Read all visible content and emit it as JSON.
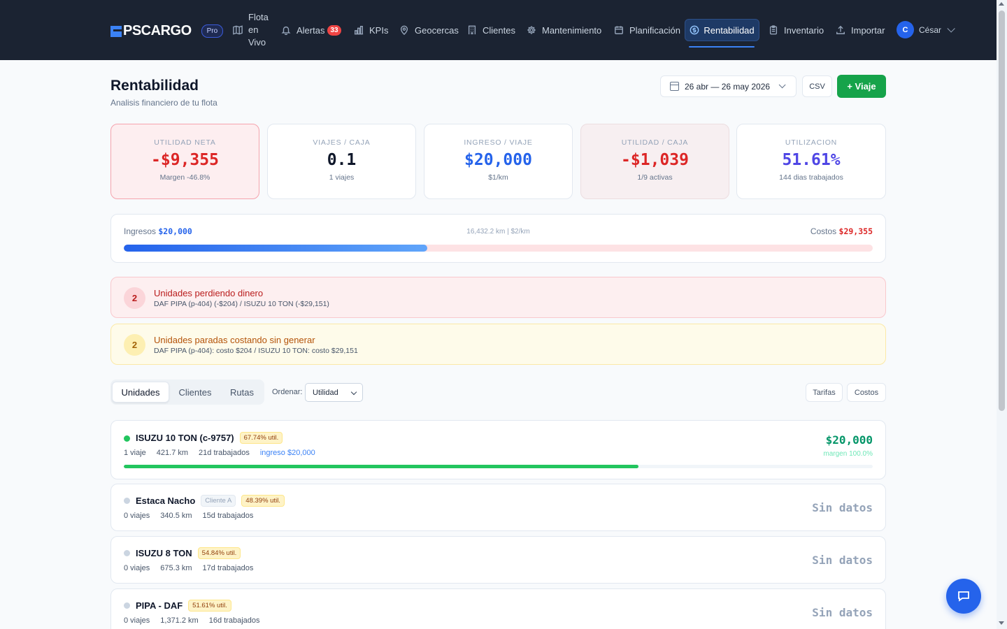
{
  "nav": {
    "brand": "PSCARGO",
    "plan_badge": "Pro",
    "items": [
      {
        "label": "Flota en Vivo",
        "icon": "map-icon"
      },
      {
        "label": "Alertas",
        "icon": "bell-icon",
        "badge": "33"
      },
      {
        "label": "KPIs",
        "icon": "bar-chart-icon"
      },
      {
        "label": "Geocercas",
        "icon": "map-pin-icon"
      },
      {
        "label": "Clientes",
        "icon": "building-icon"
      },
      {
        "label": "Mantenimiento",
        "icon": "gear-icon"
      },
      {
        "label": "Planificación",
        "icon": "calendar-icon"
      },
      {
        "label": "Rentabilidad",
        "icon": "dollar-circle-icon",
        "active": true
      },
      {
        "label": "Inventario",
        "icon": "clipboard-icon"
      },
      {
        "label": "Importar",
        "icon": "upload-icon"
      }
    ],
    "user": {
      "initial": "C",
      "name": "César"
    }
  },
  "header": {
    "title": "Rentabilidad",
    "subtitle": "Analisis financiero de tu flota",
    "date_range": "26 abr — 26 may 2026",
    "csv_label": "CSV",
    "new_trip_label": "+ Viaje"
  },
  "kpis": [
    {
      "label": "UTILIDAD NETA",
      "value": "-$9,355",
      "sub": "Margen -46.8%"
    },
    {
      "label": "VIAJES / CAJA",
      "value": "0.1",
      "sub": "1 viajes"
    },
    {
      "label": "INGRESO / VIAJE",
      "value": "$20,000",
      "sub": "$1/km"
    },
    {
      "label": "UTILIDAD / CAJA",
      "value": "-$1,039",
      "sub": "1/9 activas"
    },
    {
      "label": "UTILIZACION",
      "value": "51.61%",
      "sub": "144 dias trabajados"
    }
  ],
  "revenue_bar": {
    "income_label": "Ingresos",
    "income_value": "$20,000",
    "middle": "16,432.2 km | $2/km",
    "cost_label": "Costos",
    "cost_value": "$29,355",
    "income_share": 0.405
  },
  "alerts": [
    {
      "count": "2",
      "title": "Unidades perdiendo dinero",
      "detail": "DAF PIPA (p-404) (-$204) / ISUZU 10 TON (-$29,151)"
    },
    {
      "count": "2",
      "title": "Unidades paradas costando sin generar",
      "detail": "DAF PIPA (p-404): costo $204 / ISUZU 10 TON: costo $29,151"
    }
  ],
  "tabs": [
    "Unidades",
    "Clientes",
    "Rutas"
  ],
  "sort": {
    "label": "Ordenar:",
    "value": "Utilidad"
  },
  "actions": {
    "tarifas": "Tarifas",
    "costos": "Costos"
  },
  "units": [
    {
      "name": "ISUZU 10 TON (c-9757)",
      "util": "67.74% util.",
      "trips": "1 viaje",
      "km": "421.7 km",
      "days": "21d trabajados",
      "income": "ingreso $20,000",
      "amount": "$20,000",
      "margin": "margen 100.0%",
      "fill": 0.687,
      "status_color": "#22c55e"
    },
    {
      "name": "Estaca Nacho",
      "client": "Cliente A",
      "util": "48.39% util.",
      "trips": "0 viajes",
      "km": "340.5 km",
      "days": "15d trabajados",
      "no_data": "Sin datos",
      "status_color": "#cbd5e1"
    },
    {
      "name": "ISUZU 8 TON",
      "util": "54.84% util.",
      "trips": "0 viajes",
      "km": "675.3 km",
      "days": "17d trabajados",
      "no_data": "Sin datos",
      "status_color": "#cbd5e1"
    },
    {
      "name": "PIPA - DAF",
      "util": "51.61% util.",
      "trips": "0 viajes",
      "km": "1,371.2 km",
      "days": "16d trabajados",
      "no_data": "Sin datos",
      "status_color": "#cbd5e1"
    }
  ]
}
